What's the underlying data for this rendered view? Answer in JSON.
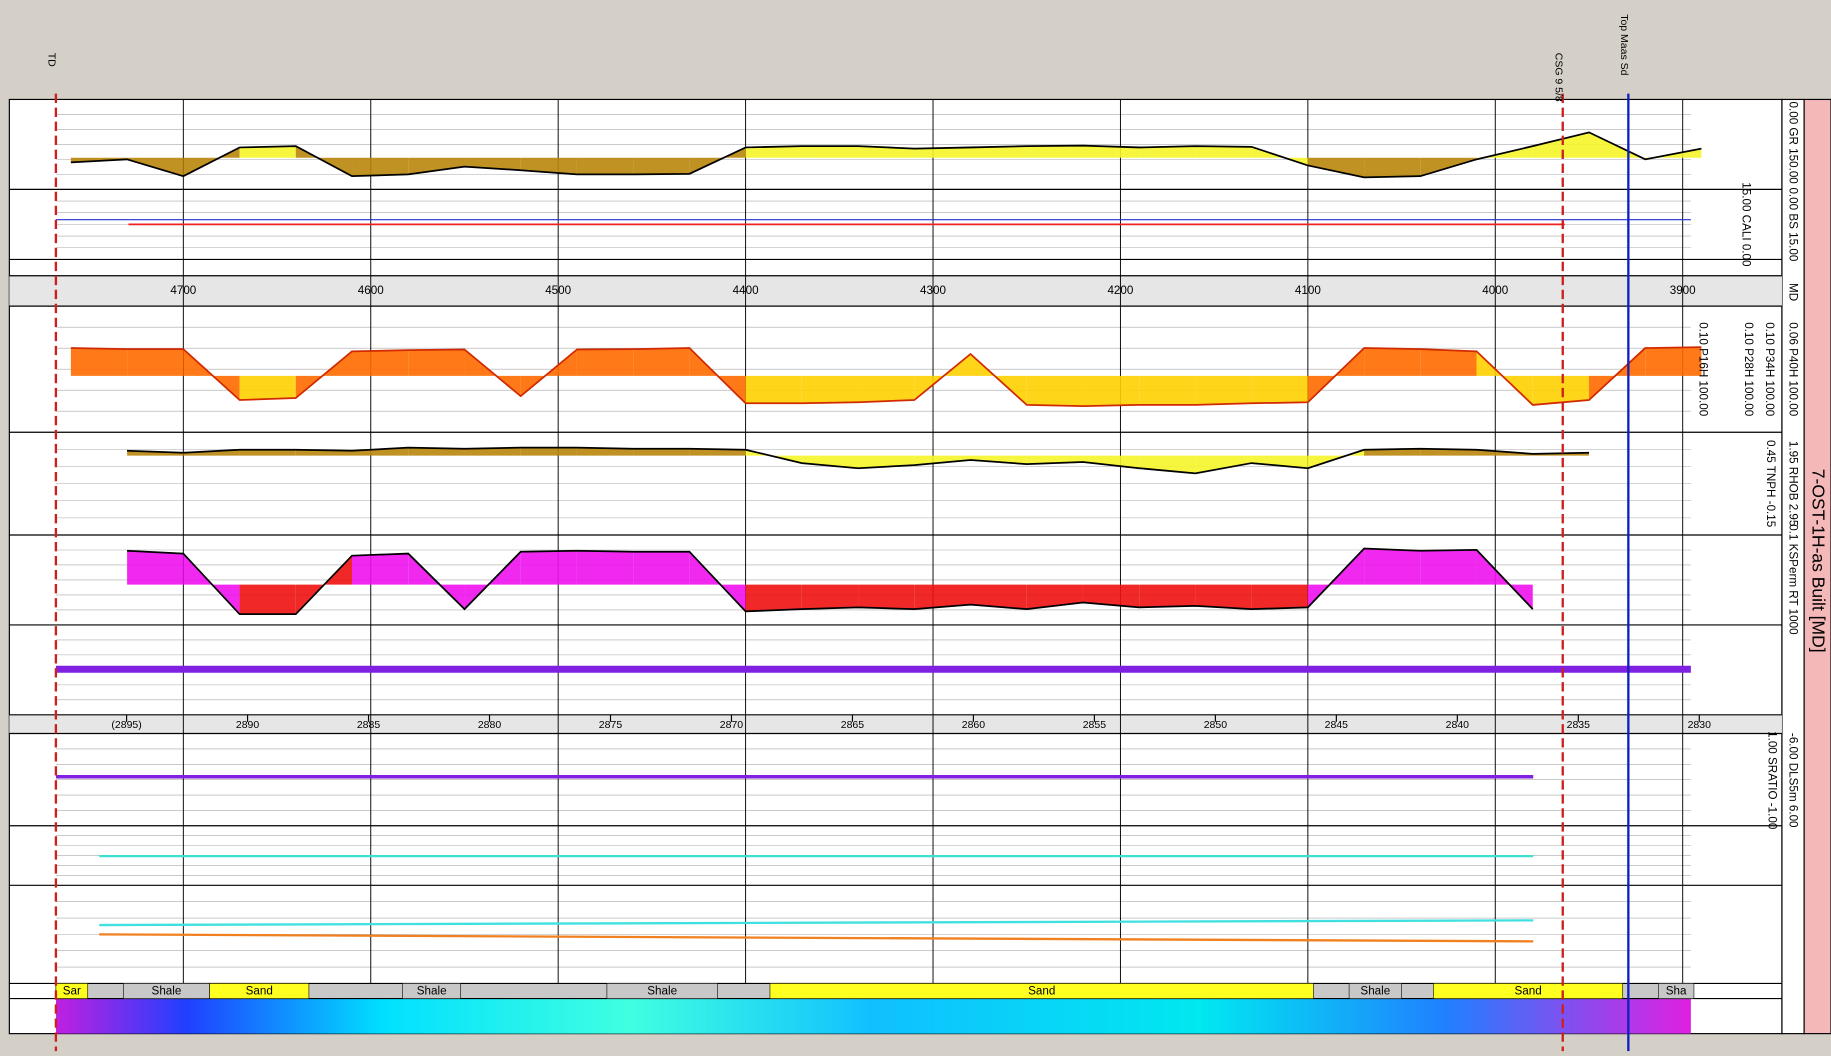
{
  "title": "7-OST-1H-as Built [MD]",
  "markers": [
    {
      "label": "TD",
      "md": 4768
    },
    {
      "label": "CSG 9 5/8",
      "md": 3964
    },
    {
      "label": "Top Maas Sd",
      "md": 3929
    }
  ],
  "md_scale": {
    "label": "MD",
    "ticks": [
      4700,
      4600,
      4500,
      4400,
      4300,
      4200,
      4100,
      4000,
      3900
    ]
  },
  "tvd_scale": {
    "ticks": [
      {
        "value": 2895,
        "label": "(2895)"
      },
      2890,
      2885,
      2880,
      2875,
      2870,
      2865,
      2860,
      2855,
      2850,
      2845,
      2840,
      2835,
      2830
    ]
  },
  "track_headers": [
    "0.00 GR 150.00",
    "0.00 BS 15.00",
    "15.00 CALI 0.00",
    "0.06 P40H 100.00",
    "0.10 P34H 100.00",
    "0.10 P28H 100.00",
    "0.10 P16H 100.00",
    "1.95 RHOB 2.95",
    "0.45 TNPH -0.15",
    "0.1 KSPerm RT 1000",
    "-6.00 DLS5m 6.00",
    "1.00 SRATIO -1.00"
  ],
  "curves": {
    "md": [
      4760,
      4730,
      4700,
      4670,
      4640,
      4610,
      4580,
      4550,
      4520,
      4490,
      4460,
      4430,
      4400,
      4370,
      4340,
      4310,
      4280,
      4250,
      4220,
      4190,
      4160,
      4130,
      4100,
      4070,
      4040,
      4010,
      3980,
      3950,
      3920,
      3890
    ],
    "list": [
      {
        "name": "GR",
        "range": [
          0,
          150
        ],
        "log": false,
        "color": "#000000",
        "fills": [
          "#f5f52a",
          "#b8860b"
        ],
        "values": [
          105,
          100,
          128,
          80,
          78,
          128,
          125,
          112,
          118,
          125,
          125,
          124,
          80,
          78,
          78,
          82,
          80,
          78,
          77,
          80,
          78,
          79,
          110,
          130,
          128,
          100,
          78,
          55,
          100,
          82
        ]
      },
      {
        "name": "P40H",
        "range": [
          0.06,
          100
        ],
        "log": true,
        "color": "#d12a00",
        "fills": [
          "#ff6a00",
          "#ffd000"
        ],
        "values": [
          8.5,
          8,
          8,
          0.4,
          0.45,
          7,
          7.5,
          7.8,
          0.5,
          7.8,
          8,
          8.5,
          0.33,
          0.33,
          0.35,
          0.4,
          6,
          0.3,
          0.28,
          0.3,
          0.3,
          0.33,
          0.35,
          8.5,
          8,
          7,
          0.3,
          0.4,
          8.5,
          9
        ]
      },
      {
        "name": "RHOB",
        "range": [
          1.95,
          2.95
        ],
        "log": false,
        "color": "#000000",
        "fills": [
          "#b8860b",
          "#f5f52a"
        ],
        "values": [
          null,
          2.13,
          2.15,
          2.12,
          2.12,
          2.13,
          2.1,
          2.11,
          2.1,
          2.1,
          2.11,
          2.11,
          2.12,
          2.25,
          2.3,
          2.27,
          2.22,
          2.26,
          2.24,
          2.3,
          2.35,
          2.25,
          2.3,
          2.12,
          2.11,
          2.12,
          2.16,
          2.15,
          null,
          null
        ]
      },
      {
        "name": "KSPerm",
        "range": [
          0.1,
          1000
        ],
        "log": true,
        "color": "#000000",
        "fills": [
          "#ee11ee",
          "#ee1111"
        ],
        "values": [
          null,
          200,
          150,
          0.3,
          0.3,
          120,
          150,
          0.5,
          180,
          200,
          180,
          180,
          0.4,
          0.5,
          0.6,
          0.5,
          0.8,
          0.5,
          1,
          0.6,
          0.7,
          0.5,
          0.6,
          250,
          200,
          220,
          0.5,
          null,
          null,
          null
        ]
      }
    ]
  },
  "lithology": [
    {
      "label": "Sar",
      "from": 4768,
      "to": 4751
    },
    {
      "label": "Shale",
      "from": 4732,
      "to": 4686
    },
    {
      "label": "Sand",
      "from": 4686,
      "to": 4633
    },
    {
      "label": "Shale",
      "from": 4583,
      "to": 4552
    },
    {
      "label": "Shale",
      "from": 4474,
      "to": 4415
    },
    {
      "label": "Sand",
      "from": 4387,
      "to": 4097
    },
    {
      "label": "Shale",
      "from": 4078,
      "to": 4050
    },
    {
      "label": "Sand",
      "from": 4033,
      "to": 3932
    },
    {
      "label": "Sha",
      "from": 3913,
      "to": 3894
    }
  ]
}
